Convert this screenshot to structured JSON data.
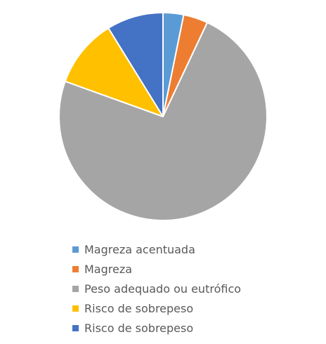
{
  "chart_data": {
    "type": "pie",
    "title": "",
    "categories": [
      "Magreza acentuada",
      "Magreza",
      "Peso adequado ou eutrófico",
      "Risco de sobrepeso",
      "Risco de sobrepeso"
    ],
    "values": [
      3.2,
      3.8,
      73.5,
      10.7,
      8.8
    ],
    "colors": [
      "#5B9BD5",
      "#ED7D31",
      "#A5A5A5",
      "#FFC000",
      "#4472C4"
    ],
    "legend_position": "bottom",
    "slice_border_color": "#ffffff"
  }
}
